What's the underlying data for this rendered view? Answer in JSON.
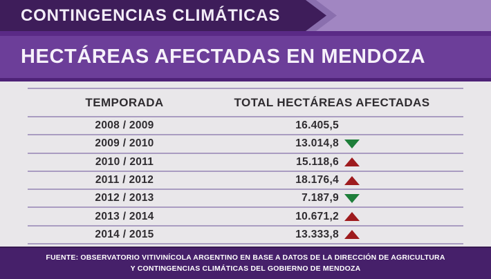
{
  "banner": {
    "label": "CONTINGENCIAS CLIMÁTICAS"
  },
  "title": {
    "label": "HECTÁREAS AFECTADAS EN MENDOZA"
  },
  "table": {
    "col_temporada": "TEMPORADA",
    "col_total": "TOTAL HECTÁREAS AFECTADAS",
    "rows": [
      {
        "temporada": "2008 / 2009",
        "total": "16.405,5",
        "trend": "none"
      },
      {
        "temporada": "2009 / 2010",
        "total": "13.014,8",
        "trend": "down"
      },
      {
        "temporada": "2010 / 2011",
        "total": "15.118,6",
        "trend": "up"
      },
      {
        "temporada": "2011 / 2012",
        "total": "18.176,4",
        "trend": "up"
      },
      {
        "temporada": "2012 / 2013",
        "total": "7.187,9",
        "trend": "down"
      },
      {
        "temporada": "2013 / 2014",
        "total": "10.671,2",
        "trend": "up"
      },
      {
        "temporada": "2014 / 2015",
        "total": "13.333,8",
        "trend": "up"
      }
    ]
  },
  "footer": {
    "line1": "FUENTE: OBSERVATORIO VITIVINÍCOLA ARGENTINO EN BASE A DATOS DE  LA DIRECCIÓN DE AGRICULTURA",
    "line2": "Y CONTINGENCIAS CLIMÁTICAS DEL GOBIERNO DE MENDOZA"
  },
  "colors": {
    "lavender_strip": "#a186c2",
    "banner_dark_purple": "#3e1d5a",
    "chevron_outer_purple": "#8a6fae",
    "title_purple": "#6c3e99",
    "table_background": "#e9e7ea",
    "separator_line": "#a99cc1",
    "increase_red": "#9e1b1e",
    "decrease_green": "#1e7e3a",
    "footer_purple": "#46206a"
  },
  "chart_data": {
    "type": "table",
    "title": "HECTÁREAS AFECTADAS EN MENDOZA",
    "subtitle": "CONTINGENCIAS CLIMÁTICAS",
    "columns": [
      "TEMPORADA",
      "TOTAL HECTÁREAS AFECTADAS"
    ],
    "categories": [
      "2008 / 2009",
      "2009 / 2010",
      "2010 / 2011",
      "2011 / 2012",
      "2012 / 2013",
      "2013 / 2014",
      "2014 / 2015"
    ],
    "values": [
      16405.5,
      13014.8,
      15118.6,
      18176.4,
      7187.9,
      10671.2,
      13333.8
    ],
    "trend_vs_previous": [
      "none",
      "down",
      "up",
      "up",
      "down",
      "up",
      "up"
    ],
    "source": "FUENTE: OBSERVATORIO VITIVINÍCOLA ARGENTINO EN BASE A DATOS DE LA DIRECCIÓN DE AGRICULTURA Y CONTINGENCIAS CLIMÁTICAS DEL GOBIERNO DE MENDOZA"
  }
}
